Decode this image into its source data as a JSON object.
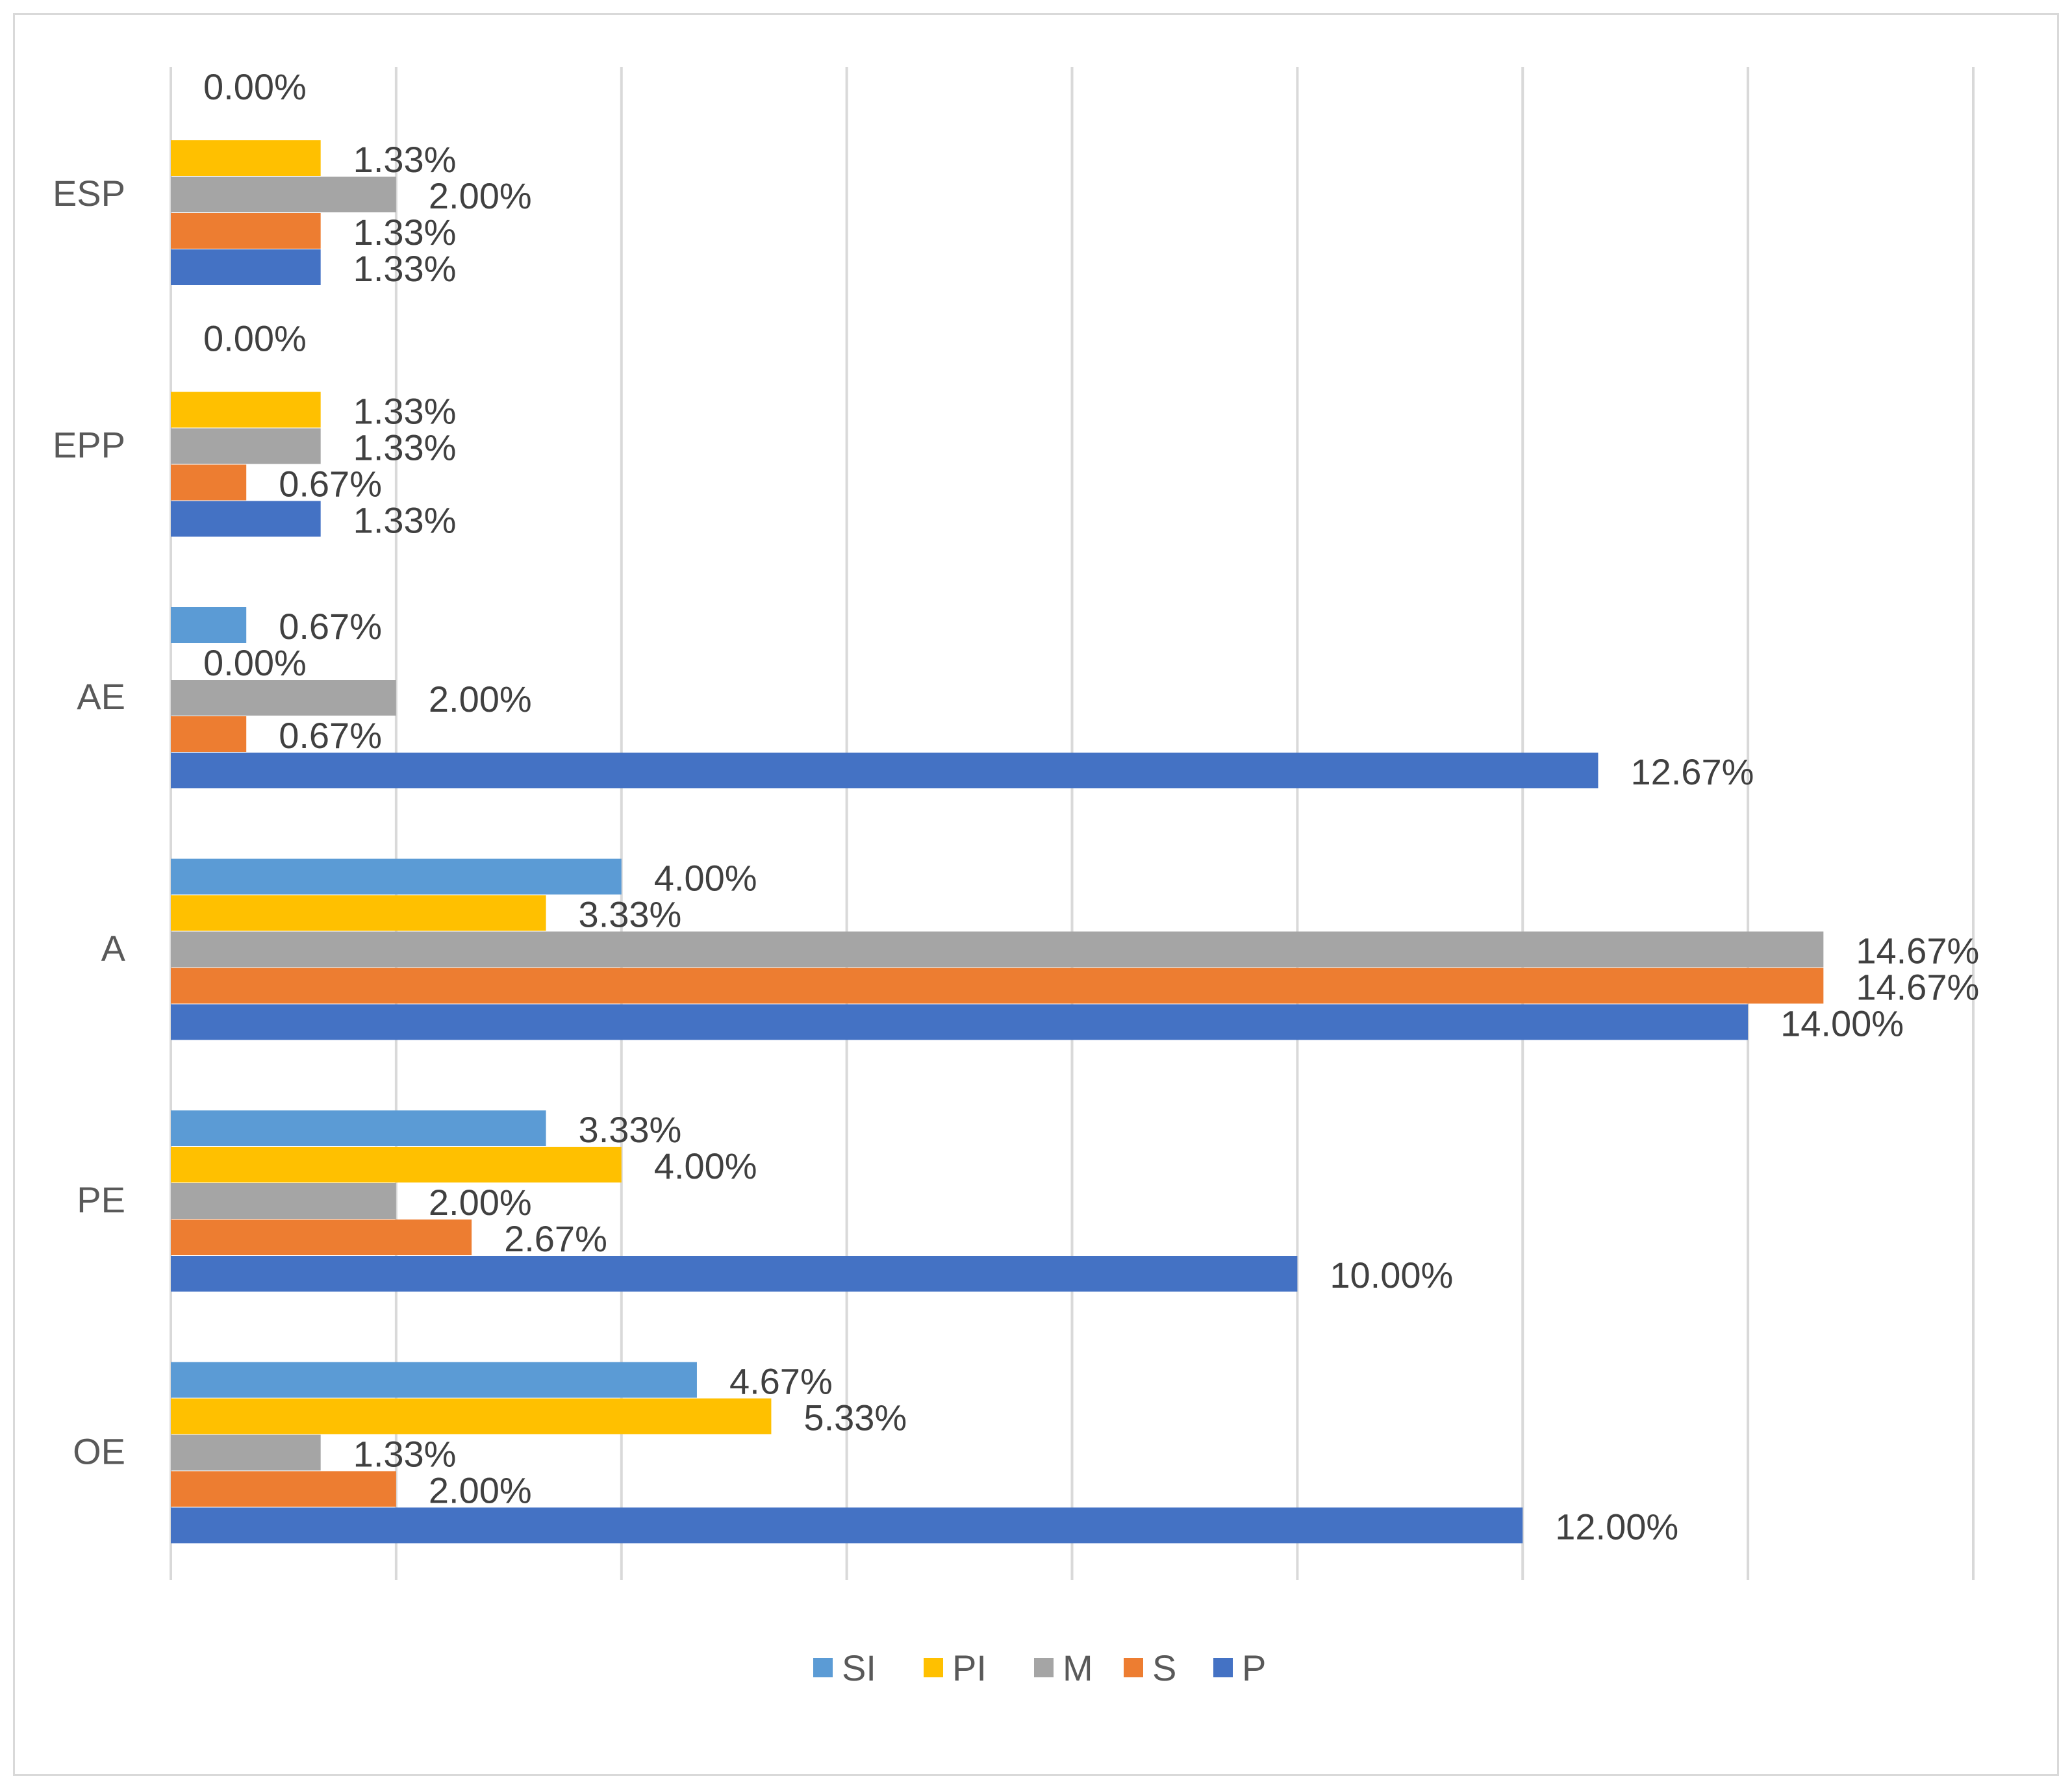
{
  "chart_data": {
    "type": "bar",
    "orientation": "horizontal",
    "categories": [
      "ESP",
      "EPP",
      "AE",
      "A",
      "PE",
      "OE"
    ],
    "series": [
      {
        "name": "SI",
        "color": "#5B9BD5",
        "values": [
          null,
          null,
          0.67,
          4.0,
          3.33,
          4.67
        ],
        "labels": [
          null,
          null,
          "0.67%",
          "4.00%",
          "3.33%",
          "4.67%"
        ]
      },
      {
        "name": "PI",
        "color": "#FFC000",
        "values": [
          1.33,
          1.33,
          0.0,
          3.33,
          4.0,
          5.33
        ],
        "labels": [
          "1.33%",
          "1.33%",
          "0.00%",
          "3.33%",
          "4.00%",
          "5.33%"
        ]
      },
      {
        "name": "M",
        "color": "#A5A5A5",
        "values": [
          2.0,
          1.33,
          2.0,
          14.67,
          2.0,
          1.33
        ],
        "labels": [
          "2.00%",
          "1.33%",
          "2.00%",
          "14.67%",
          "2.00%",
          "1.33%"
        ]
      },
      {
        "name": "S",
        "color": "#ED7D31",
        "values": [
          1.33,
          0.67,
          0.67,
          14.67,
          2.67,
          2.0
        ],
        "labels": [
          "1.33%",
          "0.67%",
          "0.67%",
          "14.67%",
          "2.67%",
          "2.00%"
        ]
      },
      {
        "name": "P",
        "color": "#4472C4",
        "values": [
          1.33,
          1.33,
          12.67,
          14.0,
          10.0,
          12.0
        ],
        "labels": [
          "1.33%",
          "1.33%",
          "12.67%",
          "14.00%",
          "10.00%",
          "12.00%"
        ]
      }
    ],
    "extra_labels": [
      {
        "category": "ESP",
        "text": "0.00%"
      },
      {
        "category": "EPP",
        "text": "0.00%"
      }
    ],
    "title": "",
    "xlabel": "",
    "ylabel": "",
    "xlim": [
      0,
      16
    ],
    "x_gridlines": [
      0,
      2,
      4,
      6,
      8,
      10,
      12,
      14,
      16
    ],
    "x_tick_labels_visible": false,
    "legend": {
      "position": "bottom",
      "entries": [
        "SI",
        "PI",
        "M",
        "S",
        "P"
      ]
    }
  }
}
